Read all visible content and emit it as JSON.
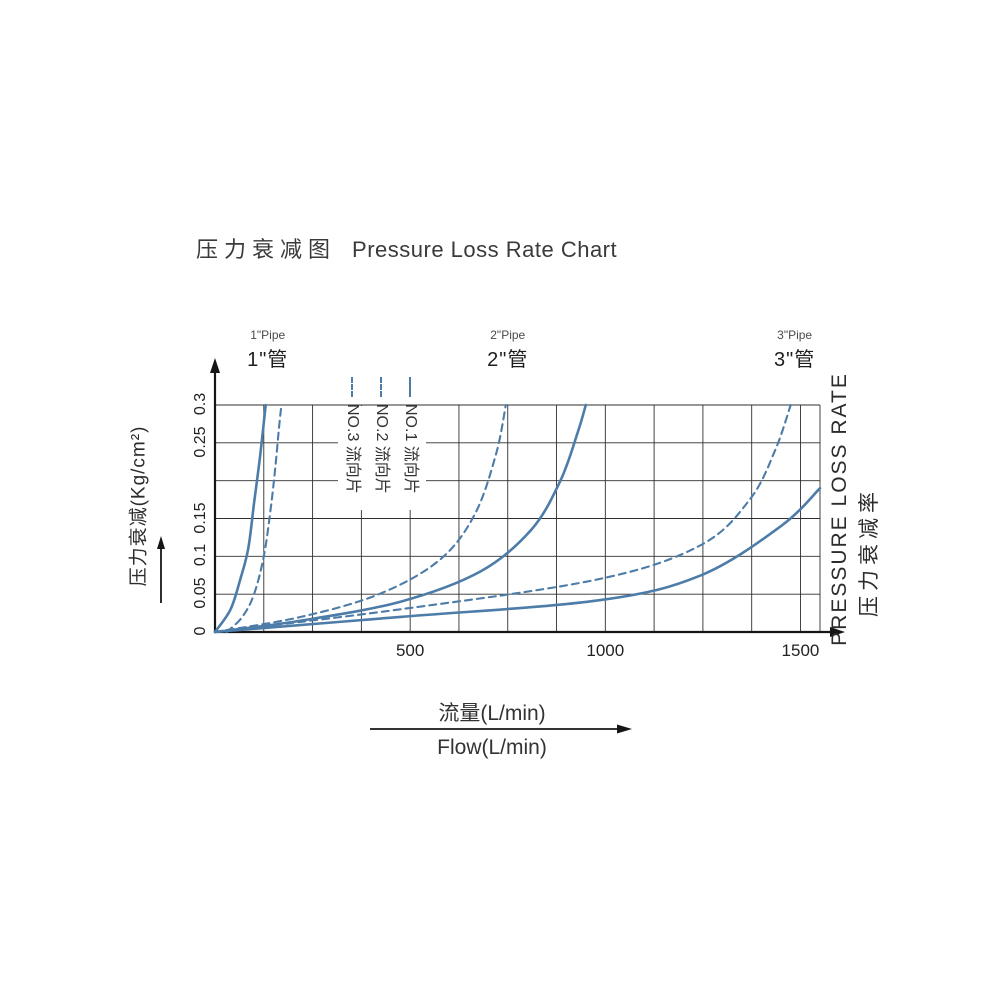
{
  "title": {
    "zh": "压力衰减图",
    "en": "Pressure Loss Rate Chart"
  },
  "axis_labels": {
    "y_title": "压力衰减(Kg/cm²)",
    "x_title_zh": "流量(L/min)",
    "x_title_en": "Flow(L/min)",
    "right_title_en": "PRESSURE LOSS RATE",
    "right_title_zh": "压力衰减率"
  },
  "pipe_labels": [
    {
      "small": "1\"Pipe",
      "big": "1\"管",
      "flow_anchor": 135
    },
    {
      "small": "2\"Pipe",
      "big": "2\"管",
      "flow_anchor": 750
    },
    {
      "small": "3\"Pipe",
      "big": "3\"管",
      "flow_anchor": 1485
    }
  ],
  "legend": [
    {
      "label": "NO.3 流向片",
      "line_style": "dashed"
    },
    {
      "label": "NO.2 流向片",
      "line_style": "dashed"
    },
    {
      "label": "NO.1 流向片",
      "line_style": "solid"
    }
  ],
  "colors": {
    "curve": "#4d7ca8",
    "grid": "#2f2f2f",
    "axis": "#161616",
    "text": "#333333"
  },
  "chart_data": {
    "type": "line",
    "title": "压力衰减图 Pressure Loss Rate Chart",
    "xlabel": "流量 Flow (L/min)",
    "ylabel": "压力衰减 (Kg/cm²)",
    "xlim": [
      0,
      1550
    ],
    "ylim": [
      0,
      0.3
    ],
    "grid": true,
    "legend_position": "inside-top-left",
    "x_grid_step": 125,
    "y_grid_step": 0.05,
    "xticks": [
      {
        "v": 500,
        "label": "500"
      },
      {
        "v": 1000,
        "label": "1000"
      },
      {
        "v": 1500,
        "label": "1500"
      }
    ],
    "yticks": [
      {
        "v": 0,
        "label": "0"
      },
      {
        "v": 0.05,
        "label": "0.05"
      },
      {
        "v": 0.1,
        "label": "0.1"
      },
      {
        "v": 0.15,
        "label": "0.15"
      },
      {
        "v": 0.25,
        "label": "0.25"
      },
      {
        "v": 0.3,
        "label": "0.3"
      }
    ],
    "series": [
      {
        "name": "1\"管 solid curve (NO.1 流向片)",
        "style": "solid",
        "points": [
          [
            0,
            0
          ],
          [
            40,
            0.03
          ],
          [
            65,
            0.07
          ],
          [
            85,
            0.11
          ],
          [
            100,
            0.17
          ],
          [
            115,
            0.23
          ],
          [
            130,
            0.3
          ]
        ]
      },
      {
        "name": "1\"管 dashed curve (流向片)",
        "style": "dashed",
        "points": [
          [
            30,
            0
          ],
          [
            70,
            0.02
          ],
          [
            100,
            0.05
          ],
          [
            125,
            0.1
          ],
          [
            142,
            0.16
          ],
          [
            155,
            0.22
          ],
          [
            164,
            0.27
          ],
          [
            170,
            0.3
          ]
        ]
      },
      {
        "name": "2\"管 solid curve (NO.1 流向片)",
        "style": "solid",
        "points": [
          [
            0,
            0
          ],
          [
            220,
            0.015
          ],
          [
            475,
            0.04
          ],
          [
            680,
            0.08
          ],
          [
            810,
            0.135
          ],
          [
            885,
            0.2
          ],
          [
            930,
            0.265
          ],
          [
            950,
            0.3
          ]
        ]
      },
      {
        "name": "2\"管 dashed curve (流向片)",
        "style": "dashed",
        "points": [
          [
            0,
            0
          ],
          [
            220,
            0.02
          ],
          [
            420,
            0.05
          ],
          [
            575,
            0.095
          ],
          [
            665,
            0.155
          ],
          [
            720,
            0.235
          ],
          [
            745,
            0.3
          ]
        ]
      },
      {
        "name": "3\"管 solid curve (NO.1 流向片)",
        "style": "solid",
        "points": [
          [
            0,
            0
          ],
          [
            475,
            0.02
          ],
          [
            985,
            0.042
          ],
          [
            1245,
            0.075
          ],
          [
            1450,
            0.14
          ],
          [
            1550,
            0.19
          ]
        ]
      },
      {
        "name": "3\"管 dashed curve (流向片)",
        "style": "dashed",
        "points": [
          [
            0,
            0
          ],
          [
            475,
            0.03
          ],
          [
            985,
            0.07
          ],
          [
            1245,
            0.115
          ],
          [
            1370,
            0.175
          ],
          [
            1435,
            0.24
          ],
          [
            1475,
            0.3
          ]
        ]
      }
    ]
  }
}
